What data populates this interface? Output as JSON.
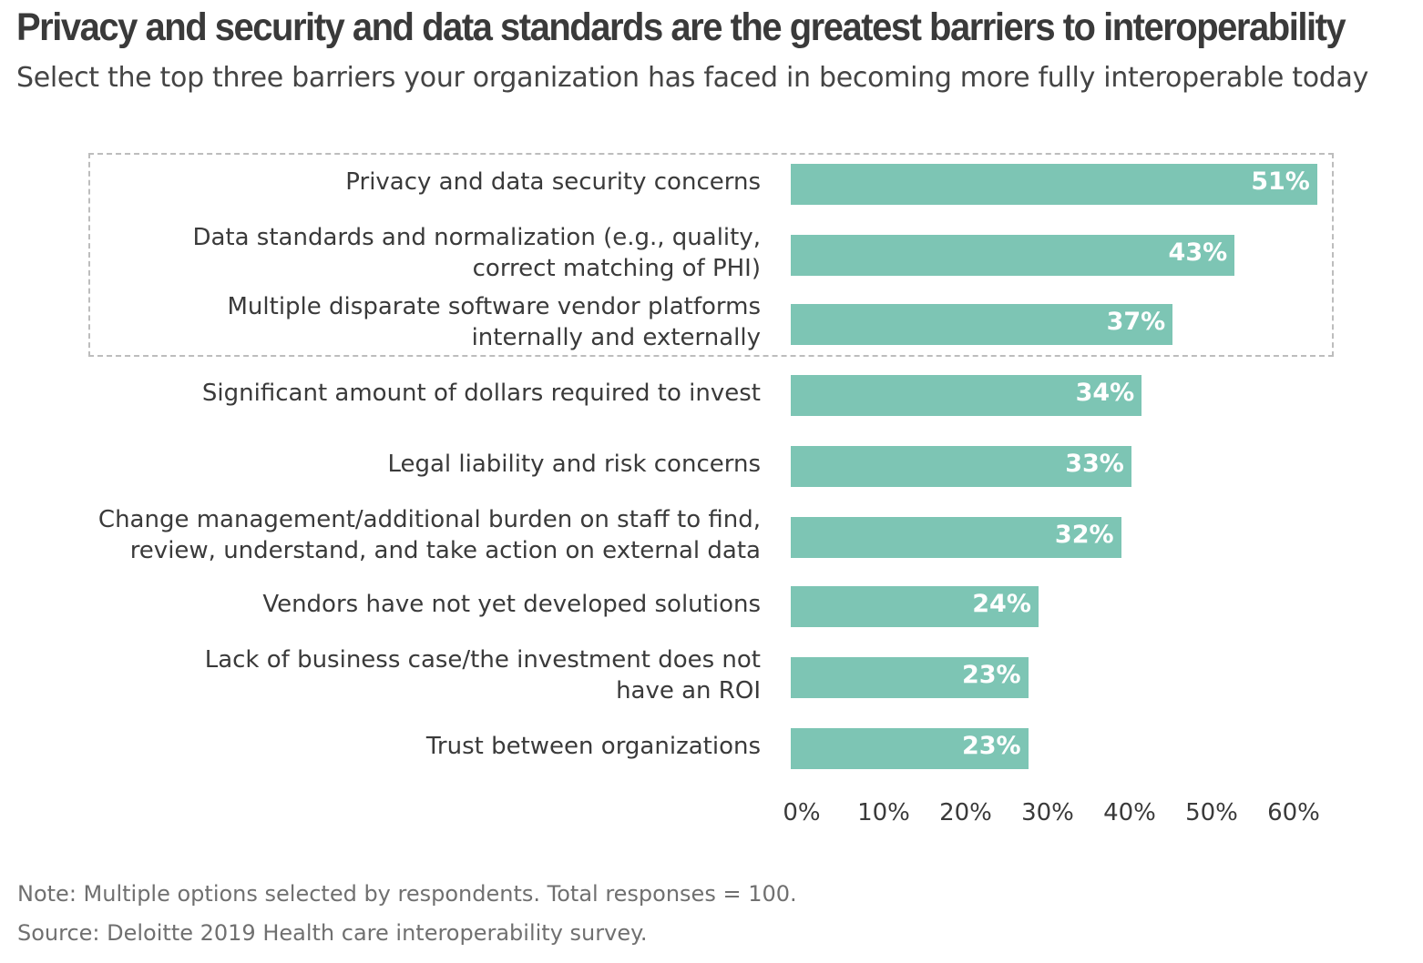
{
  "colors": {
    "bar": "#7dc5b4",
    "text": "#3a3a3a",
    "muted": "#707070"
  },
  "chart_data": {
    "type": "bar",
    "orientation": "horizontal",
    "title": "Privacy and security and data standards are the greatest barriers to interoperability",
    "subtitle": "Select the top three barriers your organization has faced in becoming more fully interoperable today",
    "categories": [
      [
        "Privacy and data security concerns"
      ],
      [
        "Data standards and normalization (e.g., quality,",
        "correct matching of PHI)"
      ],
      [
        "Multiple disparate software vendor platforms",
        "internally and externally"
      ],
      [
        "Significant amount of dollars required to invest"
      ],
      [
        "Legal liability and risk concerns"
      ],
      [
        "Change management/additional burden on staff to find,",
        "review, understand, and take action on external data"
      ],
      [
        "Vendors have not yet developed solutions"
      ],
      [
        "Lack of business case/the investment does not",
        "have an ROI"
      ],
      [
        "Trust between organizations"
      ]
    ],
    "values": [
      51,
      43,
      37,
      34,
      33,
      32,
      24,
      23,
      23
    ],
    "value_labels": [
      "51%",
      "43%",
      "37%",
      "34%",
      "33%",
      "32%",
      "24%",
      "23%",
      "23%"
    ],
    "xlim": [
      0,
      60
    ],
    "xticks": [
      "0%",
      "10%",
      "20%",
      "30%",
      "40%",
      "50%",
      "60%"
    ],
    "highlighted_top": 3,
    "unit": "%"
  },
  "footer": {
    "note": "Note: Multiple options selected by respondents. Total responses = 100.",
    "source": "Source: Deloitte 2019 Health care interoperability survey."
  }
}
